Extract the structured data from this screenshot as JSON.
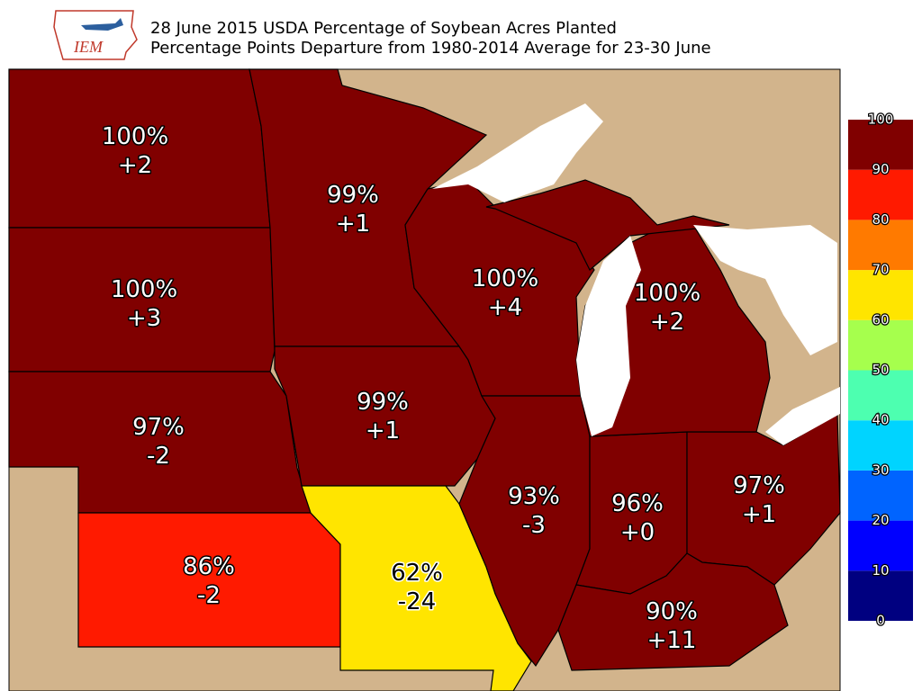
{
  "header": {
    "logo": "IEM",
    "title": "28 June 2015 USDA Percentage of Soybean Acres Planted",
    "subtitle": "Percentage Points Departure from 1980-2014 Average for 23-30 June"
  },
  "states": [
    {
      "percent": "100%",
      "departure": "+2",
      "color": "#800000"
    },
    {
      "percent": "100%",
      "departure": "+3",
      "color": "#800000"
    },
    {
      "percent": "97%",
      "departure": "-2",
      "color": "#800000"
    },
    {
      "percent": "86%",
      "departure": "-2",
      "color": "#ff1a00"
    },
    {
      "percent": "99%",
      "departure": "+1",
      "color": "#800000"
    },
    {
      "percent": "99%",
      "departure": "+1",
      "color": "#800000"
    },
    {
      "percent": "62%",
      "departure": "-24",
      "color": "#ffe500"
    },
    {
      "percent": "100%",
      "departure": "+4",
      "color": "#800000"
    },
    {
      "percent": "93%",
      "departure": "-3",
      "color": "#800000"
    },
    {
      "percent": "96%",
      "departure": "+0",
      "color": "#800000"
    },
    {
      "percent": "97%",
      "departure": "+1",
      "color": "#800000"
    },
    {
      "percent": "90%",
      "departure": "+11",
      "color": "#800000"
    },
    {
      "percent": "100%",
      "departure": "+2",
      "color": "#800000"
    }
  ],
  "colorbar": {
    "ticks": [
      0,
      10,
      20,
      30,
      40,
      50,
      60,
      70,
      80,
      90,
      100
    ],
    "colors": [
      "#000080",
      "#0000ff",
      "#0064ff",
      "#00d4ff",
      "#4dffb0",
      "#a6ff4d",
      "#ffe500",
      "#ff7a00",
      "#ff1a00",
      "#800000"
    ]
  }
}
